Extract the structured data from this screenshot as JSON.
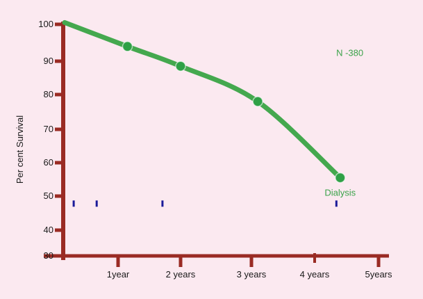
{
  "figure": {
    "background": "#FBE9F0",
    "axis_color": "#9A2B24",
    "line_color": "#44A84E",
    "marker_color": "#2FA046",
    "annotation_color": "#3BA34A",
    "censor_color": "#1A1A99",
    "text_color": "#1A1A1A"
  },
  "chart_data": {
    "type": "line",
    "title": "",
    "xlabel": "",
    "ylabel": "Per cent Survival",
    "ylim": [
      30,
      100
    ],
    "xlim": [
      0,
      5.2
    ],
    "grid": false,
    "legend_position": "none",
    "yticks": [
      100,
      90,
      80,
      70,
      60,
      50,
      40,
      30
    ],
    "xticks": [
      {
        "year": 1,
        "label": "1year"
      },
      {
        "year": 2,
        "label": "2 years"
      },
      {
        "year": 3,
        "label": "3 years"
      },
      {
        "year": 4,
        "label": "4 years"
      },
      {
        "year": 5,
        "label": "5years"
      }
    ],
    "series": [
      {
        "name": "Dialysis",
        "points": [
          {
            "x": 0,
            "y": 100.5
          },
          {
            "x": 1.15,
            "y": 94
          },
          {
            "x": 2,
            "y": 88.5
          },
          {
            "x": 3.1,
            "y": 78
          },
          {
            "x": 4.4,
            "y": 55.5
          }
        ],
        "marker_from_index": 1
      }
    ],
    "censor_marks": {
      "y": 47.8,
      "x": [
        0.17,
        0.6,
        1.71,
        4.34
      ]
    },
    "annotations": [
      {
        "id": "n-count",
        "text": "N -380",
        "x": 4.55,
        "y": 92.2
      },
      {
        "id": "series-label",
        "text": "Dialysis",
        "x": 4.4,
        "y": 50.9
      }
    ]
  }
}
